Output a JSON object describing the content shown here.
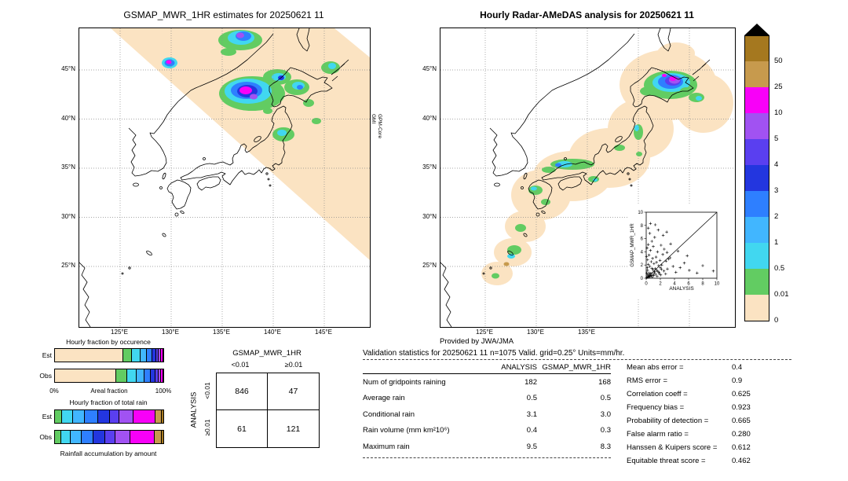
{
  "left_map": {
    "title": "GSMAP_MWR_1HR estimates for 20250621 11",
    "side_note_line1": "GPM-Core",
    "side_note_line2": "GMI",
    "lat_labels": [
      "45°N",
      "40°N",
      "35°N",
      "30°N",
      "25°N"
    ],
    "lon_labels": [
      "125°E",
      "130°E",
      "135°E",
      "140°E",
      "145°E"
    ]
  },
  "right_map": {
    "title": "Hourly Radar-AMeDAS analysis for 20250621 11",
    "credit": "Provided by JWA/JMA",
    "lat_labels": [
      "45°N",
      "40°N",
      "35°N",
      "30°N",
      "25°N"
    ],
    "lon_labels": [
      "125°E",
      "130°E",
      "135°E"
    ]
  },
  "colorbar": {
    "units": "mm/hr",
    "triangle_color": "#000000",
    "levels": [
      {
        "color": "#a5781f",
        "label": "50"
      },
      {
        "color": "#c79a4d",
        "label": "25"
      },
      {
        "color": "#f800f8",
        "label": "10"
      },
      {
        "color": "#a152f2",
        "label": "5"
      },
      {
        "color": "#5a3ff0",
        "label": "4"
      },
      {
        "color": "#2336df",
        "label": "3"
      },
      {
        "color": "#2e7fff",
        "label": "2"
      },
      {
        "color": "#41b6ff",
        "label": "1"
      },
      {
        "color": "#41d7f0",
        "label": "0.5"
      },
      {
        "color": "#62cc62",
        "label": "0.01"
      },
      {
        "color": "#fbe3c2",
        "label": "0"
      }
    ]
  },
  "chart_data": [
    {
      "id": "hourly_fraction_by_occurrence",
      "type": "bar",
      "title": "Hourly fraction by occurence",
      "xlabel": "Areal fraction",
      "xtick_min": "0%",
      "xtick_max": "100%",
      "categories": [
        "Est",
        "Obs"
      ],
      "rows": [
        {
          "label": "Est",
          "segments": [
            [
              "#fbe3c2",
              62
            ],
            [
              "#62cc62",
              8
            ],
            [
              "#41d7f0",
              8
            ],
            [
              "#41b6ff",
              6
            ],
            [
              "#2e7fff",
              5
            ],
            [
              "#2336df",
              4
            ],
            [
              "#5a3ff0",
              2
            ],
            [
              "#a152f2",
              2
            ],
            [
              "#f800f8",
              2
            ],
            [
              "#c79a4d",
              1
            ]
          ]
        },
        {
          "label": "Obs",
          "segments": [
            [
              "#fbe3c2",
              56
            ],
            [
              "#62cc62",
              10
            ],
            [
              "#41d7f0",
              9
            ],
            [
              "#41b6ff",
              7
            ],
            [
              "#2e7fff",
              6
            ],
            [
              "#2336df",
              4
            ],
            [
              "#5a3ff0",
              3
            ],
            [
              "#a152f2",
              2
            ],
            [
              "#f800f8",
              2
            ],
            [
              "#c79a4d",
              1
            ]
          ]
        }
      ]
    },
    {
      "id": "hourly_fraction_of_total_rain",
      "type": "bar",
      "title": "Hourly fraction of total rain",
      "caption": "Rainfall accumulation by amount",
      "categories": [
        "Est",
        "Obs"
      ],
      "rows": [
        {
          "label": "Est",
          "segments": [
            [
              "#62cc62",
              6
            ],
            [
              "#41d7f0",
              10
            ],
            [
              "#41b6ff",
              11
            ],
            [
              "#2e7fff",
              12
            ],
            [
              "#2336df",
              11
            ],
            [
              "#5a3ff0",
              9
            ],
            [
              "#a152f2",
              13
            ],
            [
              "#f800f8",
              20
            ],
            [
              "#c79a4d",
              6
            ],
            [
              "#a5781f",
              2
            ]
          ]
        },
        {
          "label": "Obs",
          "segments": [
            [
              "#62cc62",
              5
            ],
            [
              "#41d7f0",
              9
            ],
            [
              "#41b6ff",
              10
            ],
            [
              "#2e7fff",
              11
            ],
            [
              "#2336df",
              11
            ],
            [
              "#5a3ff0",
              9
            ],
            [
              "#a152f2",
              14
            ],
            [
              "#f800f8",
              22
            ],
            [
              "#c79a4d",
              7
            ],
            [
              "#a5781f",
              2
            ]
          ]
        }
      ]
    },
    {
      "id": "contingency_table",
      "type": "table",
      "title": "GSMAP_MWR_1HR",
      "row_group": "ANALYSIS",
      "col_labels": [
        "<0.01",
        "≥0.01"
      ],
      "row_labels": [
        "<0.01",
        "≥0.01"
      ],
      "values": [
        [
          "846",
          "47"
        ],
        [
          "61",
          "121"
        ]
      ]
    },
    {
      "id": "validation_statistics",
      "type": "table",
      "title": "Validation statistics for 20250621 11 n=1075 Valid. grid=0.25° Units=mm/hr.",
      "columns": [
        "ANALYSIS",
        "GSMAP_MWR_1HR"
      ],
      "rows": [
        {
          "label": "Num of gridpoints raining",
          "values": [
            "182",
            "168"
          ]
        },
        {
          "label": "Average rain",
          "values": [
            "0.5",
            "0.5"
          ]
        },
        {
          "label": "Conditional rain",
          "values": [
            "3.1",
            "3.0"
          ]
        },
        {
          "label": "Rain volume (mm km²10⁶)",
          "values": [
            "0.4",
            "0.3"
          ]
        },
        {
          "label": "Maximum rain",
          "values": [
            "9.5",
            "8.3"
          ]
        }
      ],
      "extra_stats": [
        {
          "label": "Mean abs error =",
          "value": "0.4"
        },
        {
          "label": "RMS error =",
          "value": "0.9"
        },
        {
          "label": "Correlation coeff =",
          "value": "0.625"
        },
        {
          "label": "Frequency bias =",
          "value": "0.923"
        },
        {
          "label": "Probability of detection =",
          "value": "0.665"
        },
        {
          "label": "False alarm ratio =",
          "value": "0.280"
        },
        {
          "label": "Hanssen & Kuipers score =",
          "value": "0.612"
        },
        {
          "label": "Equitable threat score =",
          "value": "0.462"
        }
      ]
    },
    {
      "id": "inset_scatter",
      "type": "scatter",
      "xlabel": "ANALYSIS",
      "ylabel": "GSMAP_MWR_1HR",
      "xlim": [
        0,
        10
      ],
      "ylim": [
        0,
        10
      ],
      "xticks": [
        "0",
        "2",
        "4",
        "6",
        "8",
        "10"
      ],
      "yticks": [
        "0",
        "2",
        "4",
        "6",
        "8",
        "10"
      ],
      "points": [
        [
          0.1,
          0.1
        ],
        [
          0.2,
          0.5
        ],
        [
          0.3,
          0.2
        ],
        [
          0.5,
          0.3
        ],
        [
          0.2,
          1.2
        ],
        [
          0.4,
          0.8
        ],
        [
          0.6,
          0.4
        ],
        [
          0.8,
          1.5
        ],
        [
          1.0,
          0.6
        ],
        [
          1.2,
          1.0
        ],
        [
          0.3,
          2.1
        ],
        [
          0.5,
          1.8
        ],
        [
          0.7,
          2.5
        ],
        [
          1.5,
          1.2
        ],
        [
          1.8,
          0.9
        ],
        [
          2.0,
          1.6
        ],
        [
          0.9,
          3.0
        ],
        [
          1.1,
          2.2
        ],
        [
          0.2,
          2.8
        ],
        [
          0.4,
          3.5
        ],
        [
          1.4,
          3.2
        ],
        [
          2.2,
          2.0
        ],
        [
          2.5,
          1.1
        ],
        [
          0.6,
          4.2
        ],
        [
          1.0,
          4.8
        ],
        [
          1.6,
          4.0
        ],
        [
          0.3,
          5.1
        ],
        [
          2.8,
          2.6
        ],
        [
          3.0,
          1.4
        ],
        [
          0.8,
          5.6
        ],
        [
          1.2,
          6.2
        ],
        [
          2.1,
          5.0
        ],
        [
          0.5,
          6.8
        ],
        [
          1.7,
          7.3
        ],
        [
          2.4,
          6.5
        ],
        [
          1.3,
          8.1
        ],
        [
          3.4,
          3.1
        ],
        [
          3.8,
          1.8
        ],
        [
          4.2,
          0.9
        ],
        [
          4.8,
          1.6
        ],
        [
          5.4,
          2.3
        ],
        [
          6.1,
          1.2
        ],
        [
          7.2,
          0.8
        ],
        [
          8.0,
          1.9
        ],
        [
          9.5,
          1.1
        ],
        [
          0.1,
          0.8
        ],
        [
          0.15,
          1.6
        ],
        [
          0.25,
          0.35
        ],
        [
          0.35,
          0.15
        ],
        [
          0.45,
          0.55
        ],
        [
          0.55,
          0.25
        ],
        [
          0.65,
          0.75
        ],
        [
          0.75,
          0.45
        ],
        [
          0.85,
          0.2
        ],
        [
          0.95,
          1.3
        ],
        [
          1.05,
          0.4
        ],
        [
          1.15,
          0.85
        ],
        [
          1.25,
          1.45
        ],
        [
          1.35,
          0.6
        ],
        [
          1.45,
          2.4
        ],
        [
          1.55,
          0.3
        ],
        [
          1.65,
          1.05
        ],
        [
          1.75,
          1.9
        ],
        [
          1.85,
          0.7
        ],
        [
          1.95,
          2.7
        ],
        [
          2.05,
          0.5
        ],
        [
          2.15,
          1.35
        ],
        [
          2.35,
          3.6
        ],
        [
          2.55,
          4.4
        ],
        [
          2.75,
          0.65
        ],
        [
          2.95,
          3.9
        ],
        [
          3.15,
          2.9
        ],
        [
          3.45,
          5.2
        ],
        [
          0.05,
          3.3
        ],
        [
          0.12,
          4.6
        ],
        [
          0.3,
          7.6
        ],
        [
          0.6,
          8.3
        ],
        [
          2.9,
          7.0
        ],
        [
          4.5,
          4.1
        ],
        [
          5.8,
          3.4
        ]
      ]
    }
  ]
}
